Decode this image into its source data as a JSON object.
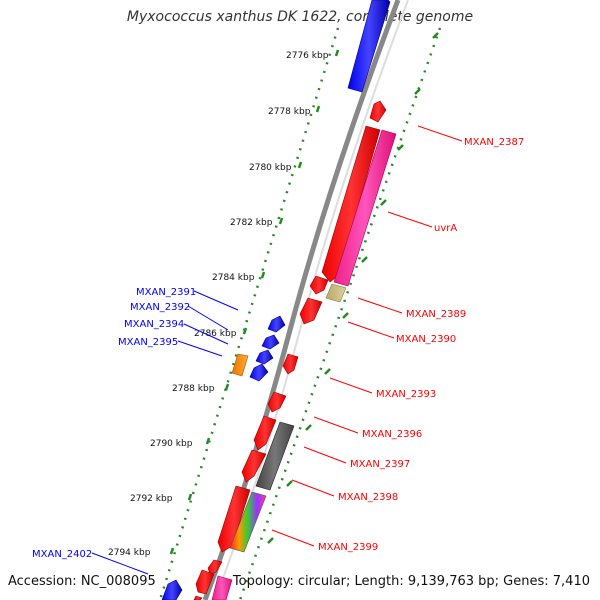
{
  "title": "Myxococcus xanthus DK 1622, complete genome",
  "footer": {
    "accession": "Accession: NC_008095",
    "stats": "Topology: circular; Length: 9,139,763 bp; Genes: 7,410"
  },
  "colors": {
    "red": "#ff0000",
    "blue": "#0000ff",
    "magenta": "#ff33aa",
    "orange": "#ff8800",
    "gray": "#555555",
    "tan": "#c8b97a",
    "dotted_axis": "#228B22",
    "backbone": "#888888"
  },
  "ticks": [
    "2776 kbp",
    "2778 kbp",
    "2780 kbp",
    "2782 kbp",
    "2784 kbp",
    "2786 kbp",
    "2788 kbp",
    "2790 kbp",
    "2792 kbp",
    "2794 kbp"
  ],
  "gene_labels": {
    "outer": [
      "MXAN_2391",
      "MXAN_2392",
      "MXAN_2394",
      "MXAN_2395",
      "MXAN_2402"
    ],
    "inner": [
      "MXAN_2387",
      "uvrA",
      "MXAN_2389",
      "MXAN_2390",
      "MXAN_2393",
      "MXAN_2396",
      "MXAN_2397",
      "MXAN_2398",
      "MXAN_2399"
    ]
  }
}
